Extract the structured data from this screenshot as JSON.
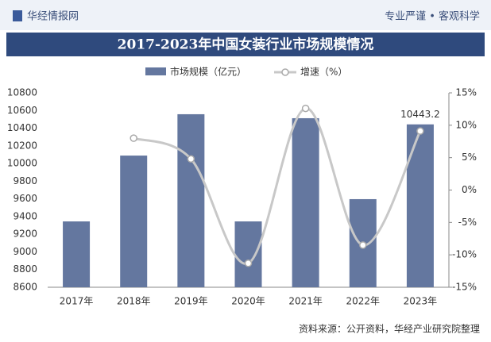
{
  "header": {
    "brand": "华经情报网",
    "slogan": "专业严谨 • 客观科学"
  },
  "chart_data": {
    "type": "bar-line",
    "title": "2017-2023年中国女装行业市场规模情况",
    "categories": [
      "2017年",
      "2018年",
      "2019年",
      "2020年",
      "2021年",
      "2022年",
      "2023年"
    ],
    "series": [
      {
        "name": "市场规模（亿元）",
        "color": "#64779f",
        "values": [
          9345,
          10090,
          10558,
          9345,
          10513,
          9597,
          10443.2
        ],
        "value_labels": [
          null,
          null,
          null,
          null,
          null,
          null,
          "10443.2"
        ]
      },
      {
        "name": "增速（%）",
        "color": "#c8c8c8",
        "axis": "y2",
        "values": [
          null,
          8.0,
          4.8,
          -11.3,
          12.6,
          -8.5,
          9.1
        ]
      }
    ],
    "ylim": [
      8600,
      10800
    ],
    "yticks": [
      8600,
      8800,
      9000,
      9200,
      9400,
      9600,
      9800,
      10000,
      10200,
      10400,
      10600,
      10800
    ],
    "y2lim": [
      -15,
      15
    ],
    "y2ticks": [
      {
        "value": -15,
        "label": "-15%"
      },
      {
        "value": -10,
        "label": "-10%"
      },
      {
        "value": -5,
        "label": "-5%"
      },
      {
        "value": 0,
        "label": "0%"
      },
      {
        "value": 5,
        "label": "5%"
      },
      {
        "value": 10,
        "label": "10%"
      },
      {
        "value": 15,
        "label": "15%"
      }
    ],
    "legend": "top",
    "source": "资料来源：公开资料，华经产业研究院整理"
  }
}
